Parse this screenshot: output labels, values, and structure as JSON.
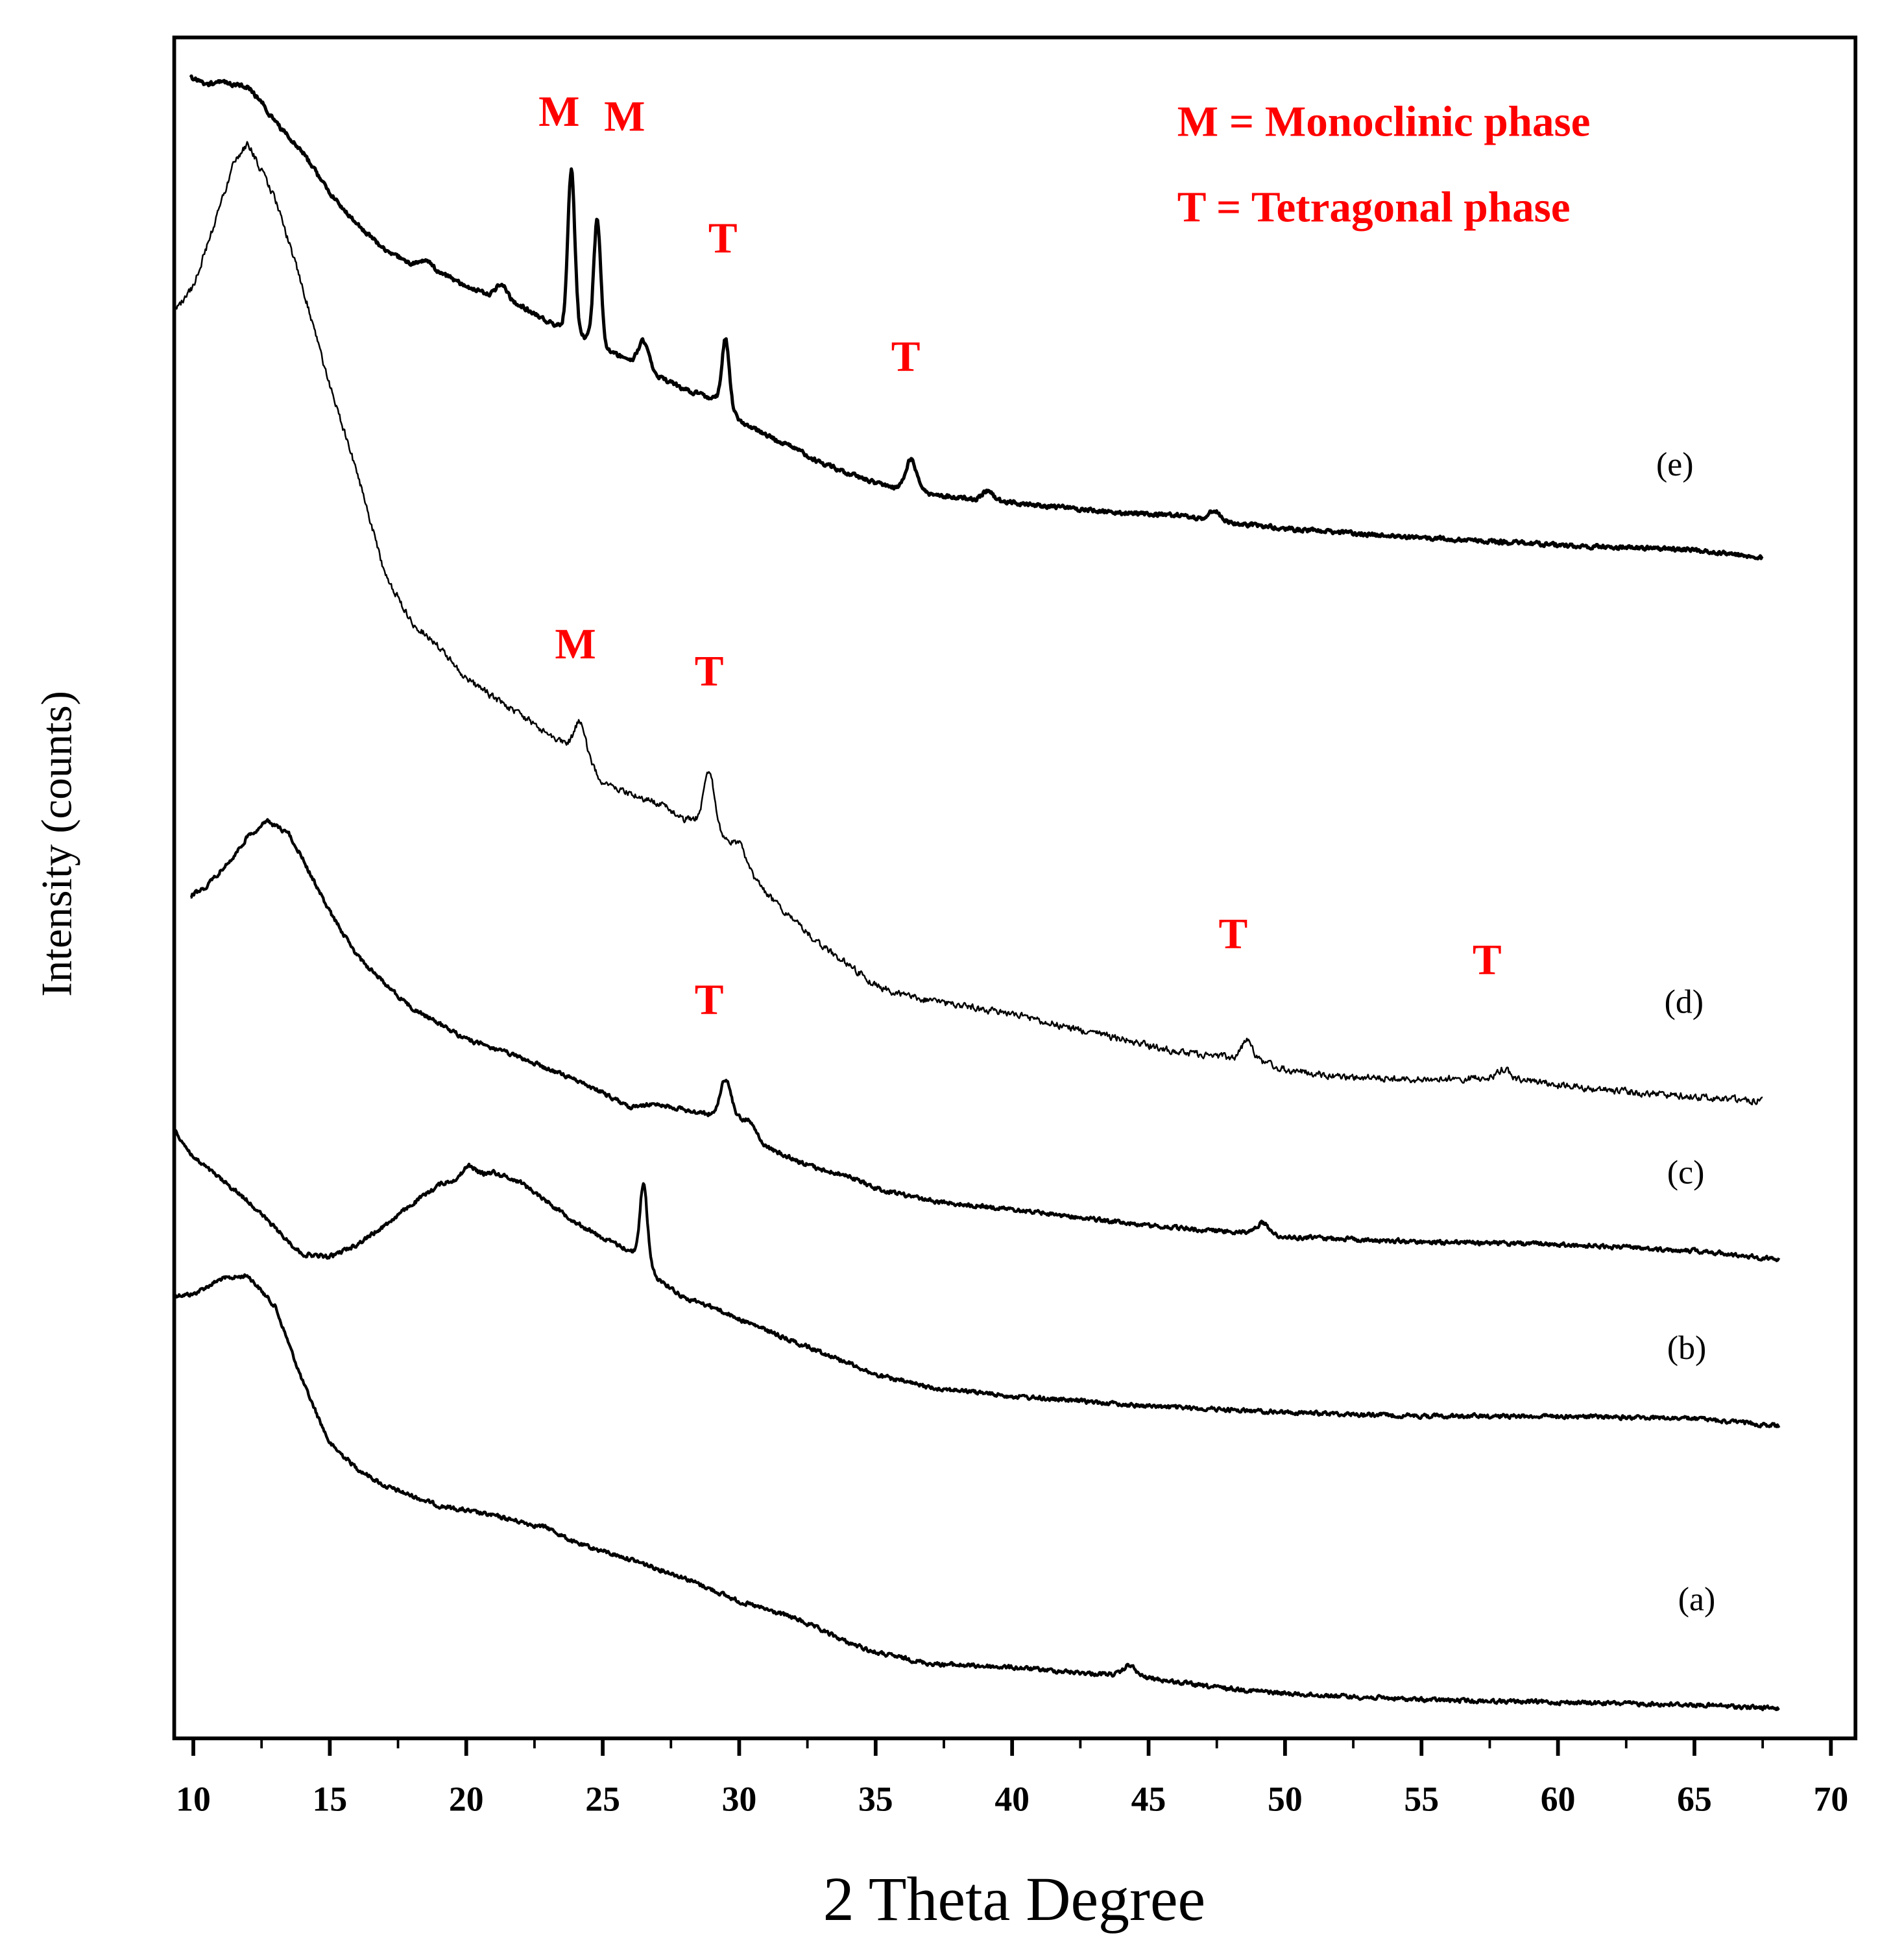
{
  "chart_data": {
    "type": "line",
    "title": "",
    "xlabel": "2 Theta Degree",
    "ylabel": "Intensity (counts)",
    "xlim": [
      9.3,
      70.9
    ],
    "xticks": [
      10,
      15,
      20,
      25,
      30,
      35,
      40,
      45,
      50,
      55,
      60,
      65,
      70
    ],
    "xtick_labels": [
      "10",
      "15",
      "20",
      "25",
      "30",
      "35",
      "40",
      "45",
      "50",
      "55",
      "60",
      "65",
      "70"
    ],
    "y_ticks_shown": false,
    "legend": {
      "position": "top-right",
      "entries": [
        "M = Monoclinic phase",
        "T = Tetragonal phase"
      ],
      "color": "#ff0000"
    },
    "series": [
      {
        "name": "(a)",
        "x_range": [
          9.3,
          68.1
        ],
        "keypoints": [
          [
            9.3,
            1041
          ],
          [
            10,
            1040
          ],
          [
            11,
            1028
          ],
          [
            12,
            1025
          ],
          [
            13,
            1050
          ],
          [
            14,
            1110
          ],
          [
            15,
            1160
          ],
          [
            16,
            1180
          ],
          [
            17,
            1194
          ],
          [
            19,
            1210
          ],
          [
            21,
            1218
          ],
          [
            23,
            1228
          ],
          [
            24,
            1240
          ],
          [
            26,
            1253
          ],
          [
            28,
            1268
          ],
          [
            30,
            1287
          ],
          [
            32,
            1300
          ],
          [
            33,
            1310
          ],
          [
            34,
            1320
          ],
          [
            35,
            1328
          ],
          [
            37,
            1337
          ],
          [
            40,
            1340
          ],
          [
            43,
            1345
          ],
          [
            44.3,
            1346
          ],
          [
            47,
            1355
          ],
          [
            50,
            1361
          ],
          [
            55,
            1366
          ],
          [
            60,
            1368
          ],
          [
            65,
            1370
          ],
          [
            68.1,
            1373
          ]
        ],
        "peaks": [
          {
            "x": 44.3,
            "height": 8
          }
        ],
        "stroke": 2.2
      },
      {
        "name": "(b)",
        "x_range": [
          9.3,
          68.1
        ],
        "keypoints": [
          [
            9.3,
            908
          ],
          [
            10,
            930
          ],
          [
            12,
            965
          ],
          [
            13.5,
            998
          ],
          [
            14,
            1008
          ],
          [
            15,
            1010
          ],
          [
            16,
            1000
          ],
          [
            17,
            985
          ],
          [
            18,
            968
          ],
          [
            19,
            952
          ],
          [
            20,
            945
          ],
          [
            21,
            942
          ],
          [
            22,
            950
          ],
          [
            23,
            966
          ],
          [
            24,
            982
          ],
          [
            25,
            995
          ],
          [
            26,
            1005
          ],
          [
            26.5,
            1010
          ],
          [
            27,
            1027
          ],
          [
            28,
            1043
          ],
          [
            29,
            1050
          ],
          [
            30,
            1060
          ],
          [
            32,
            1078
          ],
          [
            34,
            1095
          ],
          [
            35,
            1105
          ],
          [
            37,
            1115
          ],
          [
            40,
            1122
          ],
          [
            45,
            1130
          ],
          [
            50,
            1135
          ],
          [
            55,
            1138
          ],
          [
            60,
            1138
          ],
          [
            65,
            1140
          ],
          [
            68.1,
            1146
          ]
        ],
        "peaks": [
          {
            "x": 26.5,
            "height": 60
          },
          {
            "x": 20.1,
            "height": 8
          }
        ],
        "stroke": 2.2
      },
      {
        "name": "(c)",
        "x_range": [
          9.9,
          68.1
        ],
        "keypoints": [
          [
            9.9,
            720
          ],
          [
            10.5,
            712
          ],
          [
            11,
            700
          ],
          [
            11.5,
            688
          ],
          [
            12,
            672
          ],
          [
            12.7,
            660
          ],
          [
            13.5,
            670
          ],
          [
            14,
            690
          ],
          [
            15,
            733
          ],
          [
            16,
            768
          ],
          [
            17,
            790
          ],
          [
            18,
            810
          ],
          [
            20,
            835
          ],
          [
            22,
            850
          ],
          [
            24,
            868
          ],
          [
            25,
            878
          ],
          [
            26,
            890
          ],
          [
            27,
            887
          ],
          [
            28,
            892
          ],
          [
            29,
            896
          ],
          [
            29.5,
            895
          ],
          [
            30,
            900
          ],
          [
            31,
            922
          ],
          [
            32,
            932
          ],
          [
            33,
            940
          ],
          [
            34,
            945
          ],
          [
            35,
            955
          ],
          [
            37,
            965
          ],
          [
            40,
            972
          ],
          [
            45,
            985
          ],
          [
            48,
            990
          ],
          [
            49,
            990
          ],
          [
            50,
            994
          ],
          [
            55,
            998
          ],
          [
            60,
            1000
          ],
          [
            65,
            1005
          ],
          [
            68.1,
            1012
          ]
        ],
        "peaks": [
          {
            "x": 29.5,
            "height": 28
          },
          {
            "x": 30.4,
            "height": 8
          },
          {
            "x": 49.2,
            "height": 8
          }
        ],
        "stroke": 2.2
      },
      {
        "name": "(d)",
        "x_range": [
          9.3,
          67.5
        ],
        "keypoints": [
          [
            9.3,
            250
          ],
          [
            10,
            230
          ],
          [
            11,
            165
          ],
          [
            11.5,
            130
          ],
          [
            12,
            115
          ],
          [
            13,
            160
          ],
          [
            14,
            230
          ],
          [
            15,
            310
          ],
          [
            16,
            380
          ],
          [
            17,
            460
          ],
          [
            18,
            500
          ],
          [
            19,
            520
          ],
          [
            20,
            545
          ],
          [
            21,
            560
          ],
          [
            22,
            575
          ],
          [
            23,
            590
          ],
          [
            24,
            600
          ],
          [
            25,
            628
          ],
          [
            26,
            638
          ],
          [
            27,
            645
          ],
          [
            28,
            658
          ],
          [
            29,
            662
          ],
          [
            30,
            690
          ],
          [
            31,
            718
          ],
          [
            32,
            740
          ],
          [
            33,
            760
          ],
          [
            34,
            775
          ],
          [
            35,
            792
          ],
          [
            36,
            800
          ],
          [
            38,
            808
          ],
          [
            40,
            815
          ],
          [
            42,
            825
          ],
          [
            44,
            835
          ],
          [
            46,
            845
          ],
          [
            48,
            850
          ],
          [
            49,
            852
          ],
          [
            50,
            860
          ],
          [
            52,
            865
          ],
          [
            55,
            868
          ],
          [
            58,
            865
          ],
          [
            60,
            872
          ],
          [
            63,
            878
          ],
          [
            67.5,
            885
          ]
        ],
        "peaks": [
          {
            "x": 24.2,
            "height": 25
          },
          {
            "x": 28.9,
            "height": 40
          },
          {
            "x": 30.0,
            "height": 12
          },
          {
            "x": 48.6,
            "height": 15
          },
          {
            "x": 58.0,
            "height": 6
          }
        ],
        "stroke": 1.3
      },
      {
        "name": "(e)",
        "x_range": [
          9.9,
          67.5
        ],
        "keypoints": [
          [
            9.9,
            62
          ],
          [
            10.5,
            68
          ],
          [
            11,
            66
          ],
          [
            11.5,
            68
          ],
          [
            12,
            70
          ],
          [
            12.5,
            82
          ],
          [
            13,
            98
          ],
          [
            14,
            122
          ],
          [
            15,
            155
          ],
          [
            16,
            180
          ],
          [
            17,
            200
          ],
          [
            18,
            212
          ],
          [
            19,
            218
          ],
          [
            20,
            230
          ],
          [
            21,
            238
          ],
          [
            22,
            246
          ],
          [
            23,
            258
          ],
          [
            24,
            268
          ],
          [
            24.8,
            276
          ],
          [
            25,
            280
          ],
          [
            26,
            290
          ],
          [
            27,
            302
          ],
          [
            28,
            313
          ],
          [
            29,
            320
          ],
          [
            29.5,
            322
          ],
          [
            30,
            338
          ],
          [
            31,
            350
          ],
          [
            32,
            360
          ],
          [
            33,
            372
          ],
          [
            34,
            380
          ],
          [
            35,
            388
          ],
          [
            36,
            393
          ],
          [
            37,
            397
          ],
          [
            38,
            400
          ],
          [
            40,
            404
          ],
          [
            42,
            408
          ],
          [
            44,
            412
          ],
          [
            46,
            414
          ],
          [
            48,
            420
          ],
          [
            50,
            425
          ],
          [
            55,
            432
          ],
          [
            60,
            438
          ],
          [
            65,
            442
          ],
          [
            67.5,
            448
          ]
        ],
        "peaks": [
          {
            "x": 23.85,
            "height": 130
          },
          {
            "x": 24.8,
            "height": 100
          },
          {
            "x": 26.5,
            "height": 22
          },
          {
            "x": 29.5,
            "height": 50
          },
          {
            "x": 36.3,
            "height": 25
          },
          {
            "x": 21.3,
            "height": 12
          },
          {
            "x": 18.5,
            "height": 6
          },
          {
            "x": 39.1,
            "height": 8
          },
          {
            "x": 47.4,
            "height": 8
          }
        ],
        "stroke": 2.6
      }
    ],
    "trace_labels": [
      {
        "text": "(a)",
        "x": 64.4,
        "y": 1294
      },
      {
        "text": "(b)",
        "x": 64.0,
        "y": 1092
      },
      {
        "text": "(c)",
        "x": 64.0,
        "y": 951
      },
      {
        "text": "(d)",
        "x": 63.9,
        "y": 814
      },
      {
        "text": "(e)",
        "x": 63.6,
        "y": 382
      }
    ],
    "peak_annotations": [
      {
        "text": "M",
        "x": 23.4,
        "y": 101
      },
      {
        "text": "M",
        "x": 25.8,
        "y": 105
      },
      {
        "text": "T",
        "x": 29.4,
        "y": 203
      },
      {
        "text": "T",
        "x": 36.1,
        "y": 298
      },
      {
        "text": "M",
        "x": 24.0,
        "y": 529
      },
      {
        "text": "T",
        "x": 28.9,
        "y": 551
      },
      {
        "text": "T",
        "x": 48.1,
        "y": 762
      },
      {
        "text": "T",
        "x": 57.4,
        "y": 783
      },
      {
        "text": "T",
        "x": 28.9,
        "y": 815
      }
    ]
  }
}
